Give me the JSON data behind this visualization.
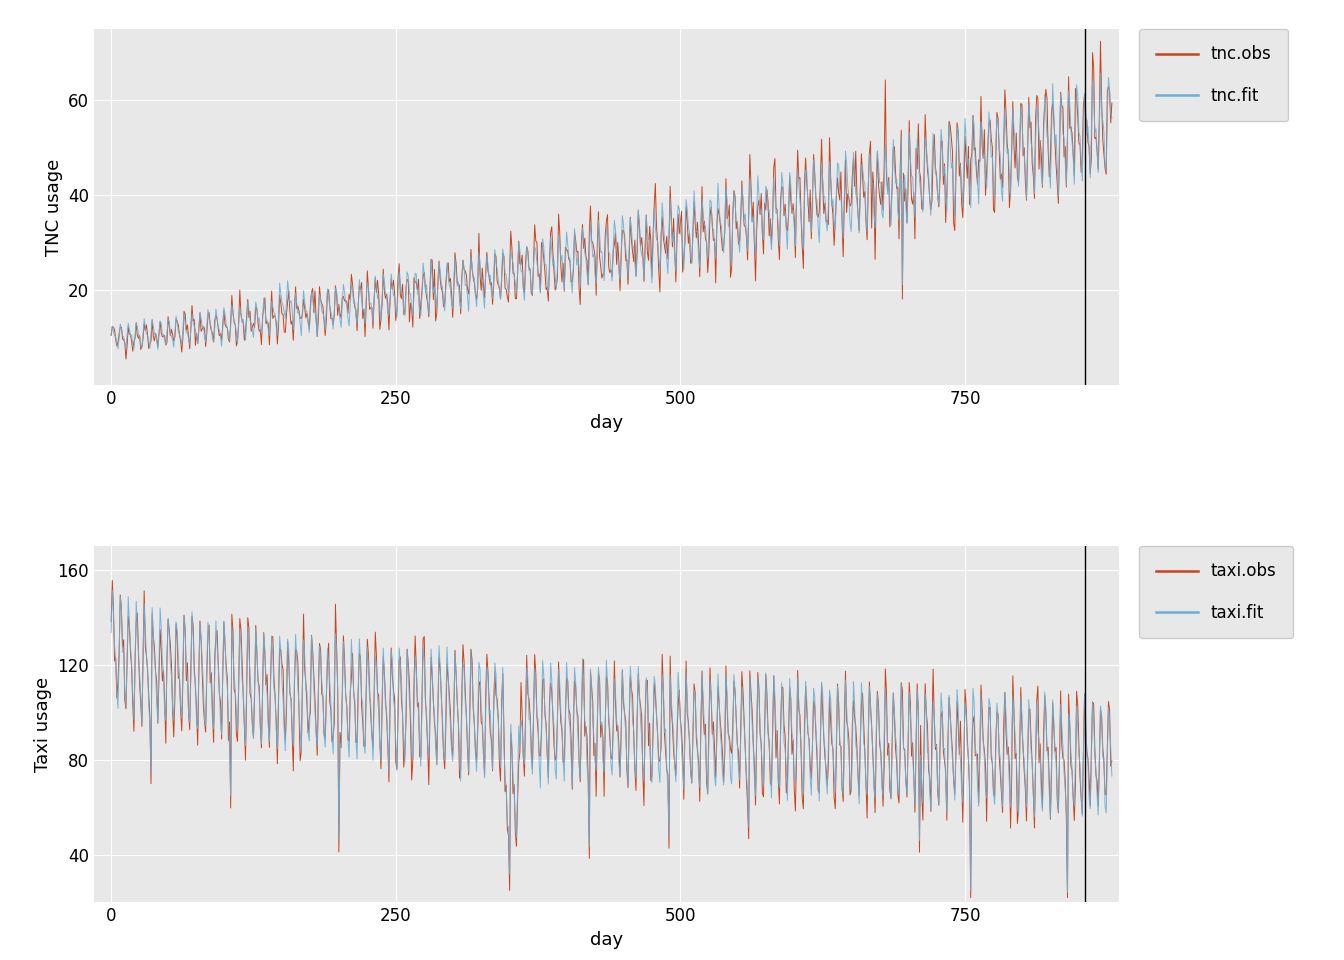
{
  "n_days": 880,
  "vline_x": 855,
  "tnc_ylim": [
    0,
    75
  ],
  "tnc_yticks": [
    20,
    40,
    60
  ],
  "taxi_ylim": [
    20,
    170
  ],
  "taxi_yticks": [
    40,
    80,
    120,
    160
  ],
  "xticks": [
    0,
    250,
    500,
    750
  ],
  "xlabel": "day",
  "tnc_ylabel": "TNC usage",
  "taxi_ylabel": "Taxi usage",
  "obs_color": "#C9441C",
  "fit_color": "#6BAED6",
  "bg_color": "#E8E8E8",
  "legend_bg": "#E8E8E8",
  "grid_color": "white",
  "vline_color": "black",
  "tnc_legend": [
    "tnc.obs",
    "tnc.fit"
  ],
  "taxi_legend": [
    "taxi.obs",
    "taxi.fit"
  ],
  "seed": 42
}
